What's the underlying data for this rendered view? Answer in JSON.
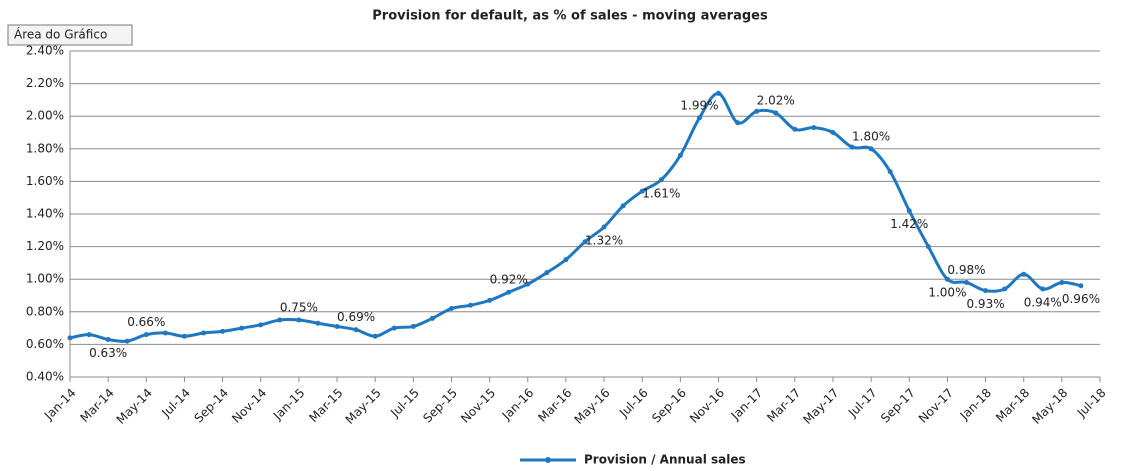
{
  "chart_data": {
    "type": "line",
    "title": "Provision for default, as % of sales - moving averages",
    "tooltip": "Área do Gráfico",
    "categories": [
      "Jan-14",
      null,
      "Mar-14",
      null,
      "May-14",
      null,
      "Jul-14",
      null,
      "Sep-14",
      null,
      "Nov-14",
      null,
      "Jan-15",
      null,
      "Mar-15",
      null,
      "May-15",
      null,
      "Jul-15",
      null,
      "Sep-15",
      null,
      "Nov-15",
      null,
      "Jan-16",
      null,
      "Mar-16",
      null,
      "May-16",
      null,
      "Jul-16",
      null,
      "Sep-16",
      null,
      "Nov-16",
      null,
      "Jan-17",
      null,
      "Mar-17",
      null,
      "May-17",
      null,
      "Jul-17",
      null,
      "Sep-17",
      null,
      "Nov-17",
      null,
      "Jan-18",
      null,
      "Mar-18",
      null,
      "May-18",
      null,
      "Jul-18"
    ],
    "series": [
      {
        "name": "Provision / Annual sales",
        "color": "#1f77c0",
        "values": [
          0.64,
          0.66,
          0.63,
          0.62,
          0.66,
          0.67,
          0.65,
          0.67,
          0.68,
          0.7,
          0.72,
          0.75,
          0.75,
          0.73,
          0.71,
          0.69,
          0.65,
          0.7,
          0.71,
          0.76,
          0.82,
          0.84,
          0.87,
          0.92,
          0.97,
          1.04,
          1.12,
          1.23,
          1.32,
          1.45,
          1.54,
          1.61,
          1.76,
          1.99,
          2.14,
          1.96,
          2.03,
          2.02,
          1.92,
          1.93,
          1.9,
          1.81,
          1.8,
          1.66,
          1.42,
          1.2,
          1.0,
          0.98,
          0.93,
          0.94,
          1.03,
          0.94,
          0.98,
          0.96,
          null
        ],
        "value_labels": [
          null,
          null,
          "0.63%",
          null,
          "0.66%",
          null,
          null,
          null,
          null,
          null,
          null,
          null,
          "0.75%",
          null,
          null,
          "0.69%",
          null,
          null,
          null,
          null,
          null,
          null,
          null,
          "0.92%",
          null,
          null,
          null,
          null,
          "1.32%",
          null,
          null,
          "1.61%",
          null,
          "1.99%",
          null,
          null,
          null,
          "2.02%",
          null,
          null,
          null,
          null,
          "1.80%",
          null,
          "1.42%",
          null,
          "1.00%",
          "0.98%",
          "0.93%",
          null,
          null,
          "0.94%",
          null,
          "0.96%",
          null
        ]
      }
    ],
    "ylim": [
      0.4,
      2.4
    ],
    "yticks": [
      {
        "value": 0.4,
        "label": "0.40%"
      },
      {
        "value": 0.6,
        "label": "0.60%"
      },
      {
        "value": 0.8,
        "label": "0.80%"
      },
      {
        "value": 1.0,
        "label": "1.00%"
      },
      {
        "value": 1.2,
        "label": "1.20%"
      },
      {
        "value": 1.4,
        "label": "1.40%"
      },
      {
        "value": 1.6,
        "label": "1.60%"
      },
      {
        "value": 1.8,
        "label": "1.80%"
      },
      {
        "value": 2.0,
        "label": "2.00%"
      },
      {
        "value": 2.2,
        "label": "2.20%"
      },
      {
        "value": 2.4,
        "label": "2.40%"
      }
    ],
    "grid": true,
    "legend": "bottom"
  }
}
